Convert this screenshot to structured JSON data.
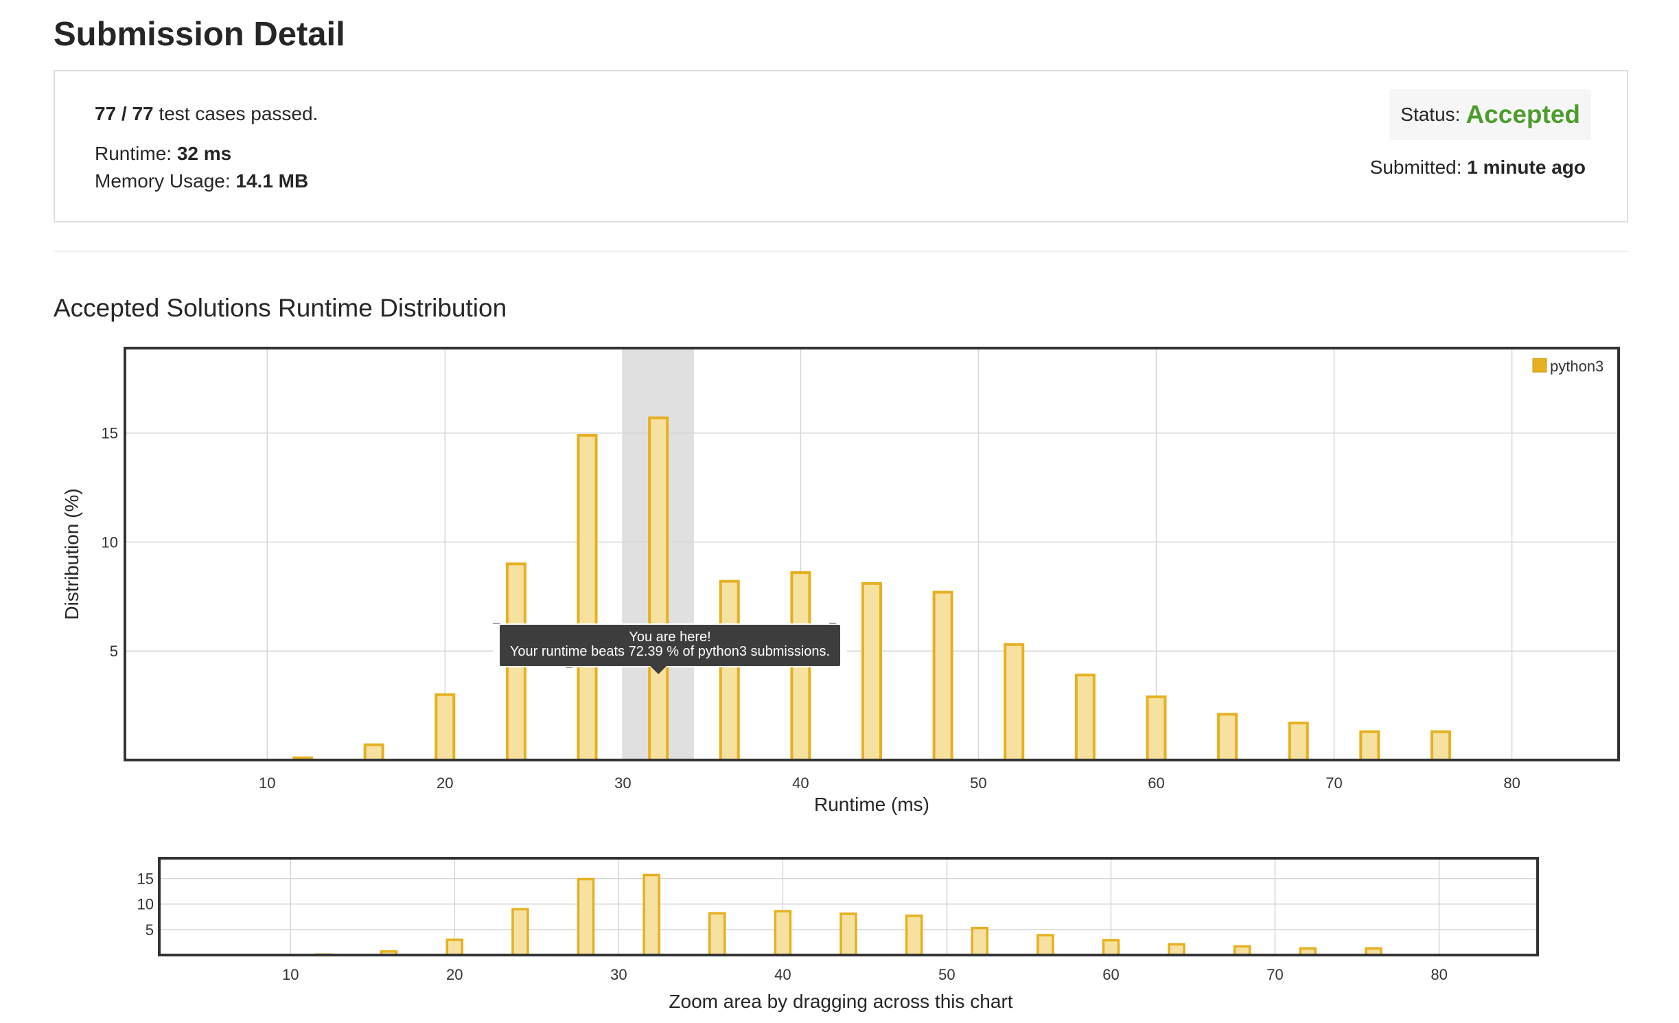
{
  "page": {
    "title": "Submission Detail"
  },
  "summary": {
    "tests_fraction": "77 / 77",
    "tests_suffix": " test cases passed.",
    "runtime_label": "Runtime: ",
    "runtime_value": "32 ms",
    "memory_label": "Memory Usage: ",
    "memory_value": "14.1 MB",
    "status_label": "Status:",
    "status_value": "Accepted",
    "status_color": "#4d9c2c",
    "submitted_label": "Submitted: ",
    "submitted_value": "1 minute ago"
  },
  "distribution": {
    "title": "Accepted Solutions Runtime Distribution",
    "tooltip_line1": "You are here!",
    "tooltip_line2": "Your runtime beats 72.39 % of python3 submissions.",
    "zoom_hint": "Zoom area by dragging across this chart"
  },
  "chart_data": [
    {
      "type": "bar",
      "xlabel": "Runtime (ms)",
      "ylabel": "Distribution (%)",
      "xlim": [
        2,
        86
      ],
      "ylim": [
        0,
        18.9
      ],
      "xticks": [
        10,
        20,
        30,
        40,
        50,
        60,
        70,
        80
      ],
      "yticks": [
        5,
        10,
        15
      ],
      "grid": true,
      "legend_position": "top-right",
      "highlight_range": [
        30,
        34
      ],
      "series": [
        {
          "name": "python3",
          "color": "#e6b020",
          "fill": "#f7e1a0",
          "x": [
            12,
            16,
            20,
            24,
            28,
            32,
            36,
            40,
            44,
            48,
            52,
            56,
            60,
            64,
            68,
            72,
            76
          ],
          "values": [
            0.1,
            0.7,
            3.0,
            9.0,
            14.9,
            15.7,
            8.2,
            8.6,
            8.1,
            7.7,
            5.3,
            3.9,
            2.9,
            2.1,
            1.7,
            1.3,
            1.3
          ]
        }
      ]
    },
    {
      "type": "bar",
      "xlabel": "Zoom area by dragging across this chart",
      "ylabel": "",
      "xlim": [
        2,
        86
      ],
      "ylim": [
        0,
        19
      ],
      "xticks": [
        10,
        20,
        30,
        40,
        50,
        60,
        70,
        80
      ],
      "yticks": [
        5,
        10,
        15
      ],
      "grid": true,
      "series": [
        {
          "name": "python3",
          "color": "#e6b020",
          "fill": "#f7e1a0",
          "x": [
            12,
            16,
            20,
            24,
            28,
            32,
            36,
            40,
            44,
            48,
            52,
            56,
            60,
            64,
            68,
            72,
            76
          ],
          "values": [
            0.1,
            0.7,
            3.0,
            9.0,
            14.9,
            15.7,
            8.2,
            8.6,
            8.1,
            7.7,
            5.3,
            3.9,
            2.9,
            2.1,
            1.7,
            1.3,
            1.3
          ]
        }
      ]
    }
  ]
}
